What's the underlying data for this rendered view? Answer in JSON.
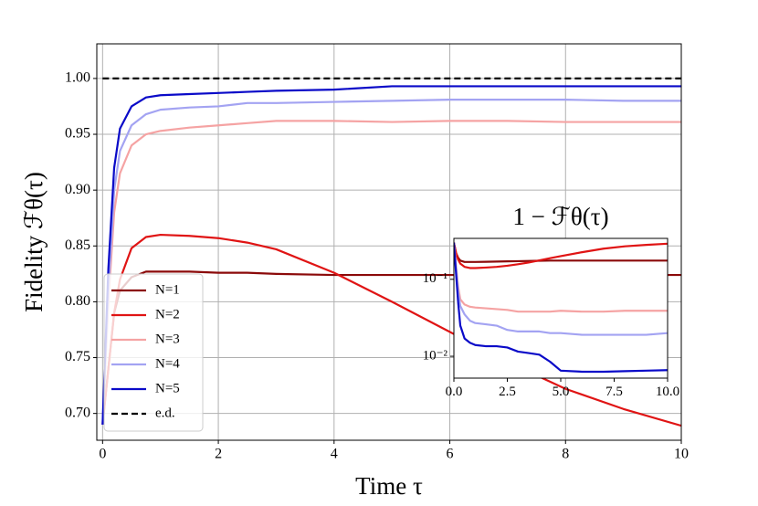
{
  "chart_data": [
    {
      "type": "line",
      "xlabel": "Time τ",
      "ylabel": "Fidelity ℱθ(τ)",
      "x": [
        0,
        0.1,
        0.2,
        0.3,
        0.5,
        0.75,
        1,
        1.5,
        2,
        2.5,
        3,
        4,
        5,
        6,
        7,
        8,
        9,
        10
      ],
      "series": [
        {
          "name": "N=1",
          "color": "#8b0a0a",
          "values": [
            0.69,
            0.74,
            0.79,
            0.81,
            0.822,
            0.827,
            0.827,
            0.827,
            0.826,
            0.826,
            0.825,
            0.824,
            0.824,
            0.824,
            0.824,
            0.824,
            0.824,
            0.824
          ]
        },
        {
          "name": "N=2",
          "color": "#e01414",
          "values": [
            0.69,
            0.74,
            0.79,
            0.82,
            0.848,
            0.858,
            0.86,
            0.859,
            0.857,
            0.853,
            0.847,
            0.826,
            0.8,
            0.773,
            0.746,
            0.722,
            0.704,
            0.689
          ]
        },
        {
          "name": "N=3",
          "color": "#f5a3a3",
          "values": [
            0.69,
            0.8,
            0.88,
            0.915,
            0.94,
            0.95,
            0.953,
            0.956,
            0.958,
            0.96,
            0.962,
            0.962,
            0.961,
            0.962,
            0.962,
            0.961,
            0.961,
            0.961
          ]
        },
        {
          "name": "N=4",
          "color": "#a3a3f2",
          "values": [
            0.69,
            0.81,
            0.9,
            0.935,
            0.958,
            0.968,
            0.972,
            0.974,
            0.975,
            0.978,
            0.978,
            0.979,
            0.98,
            0.981,
            0.981,
            0.981,
            0.98,
            0.98
          ]
        },
        {
          "name": "N=5",
          "color": "#0a0ac8",
          "values": [
            0.69,
            0.83,
            0.92,
            0.955,
            0.975,
            0.983,
            0.985,
            0.986,
            0.987,
            0.988,
            0.989,
            0.99,
            0.993,
            0.993,
            0.993,
            0.993,
            0.993,
            0.993
          ]
        },
        {
          "name": "e.d.",
          "color": "#000000",
          "linestyle": "dashed",
          "values": [
            1,
            1,
            1,
            1,
            1,
            1,
            1,
            1,
            1,
            1,
            1,
            1,
            1,
            1,
            1,
            1,
            1,
            1
          ]
        }
      ],
      "xlim": [
        -0.1,
        10
      ],
      "xticks": [
        0,
        2,
        4,
        6,
        8,
        10
      ],
      "ylim": [
        0.676,
        1.031
      ],
      "yticks": [
        {
          "value": 0.7,
          "label": "0.70"
        },
        0.75,
        {
          "value": 0.8,
          "label": "0.80"
        },
        0.85,
        {
          "value": 0.9,
          "label": "0.90"
        },
        0.95,
        {
          "value": 1,
          "label": "1.00"
        }
      ],
      "grid": true,
      "legend": "lower left"
    },
    {
      "type": "line",
      "title": "1 − ℱθ(τ)",
      "x": [
        0,
        0.1,
        0.2,
        0.3,
        0.5,
        0.75,
        1,
        1.5,
        2,
        2.5,
        3,
        3.5,
        4,
        4.5,
        5,
        6,
        7,
        8,
        9,
        10
      ],
      "series": [
        {
          "color": "#8b0a0a",
          "values": [
            0.3,
            0.22,
            0.19,
            0.175,
            0.168,
            0.168,
            0.168,
            0.169,
            0.17,
            0.171,
            0.172,
            0.173,
            0.174,
            0.175,
            0.175,
            0.175,
            0.175,
            0.175,
            0.175,
            0.175
          ]
        },
        {
          "color": "#e01414",
          "values": [
            0.3,
            0.22,
            0.18,
            0.16,
            0.145,
            0.14,
            0.14,
            0.142,
            0.145,
            0.15,
            0.157,
            0.165,
            0.176,
            0.188,
            0.2,
            0.225,
            0.25,
            0.268,
            0.28,
            0.29
          ]
        },
        {
          "color": "#f5a3a3",
          "values": [
            0.3,
            0.15,
            0.08,
            0.055,
            0.047,
            0.044,
            0.043,
            0.042,
            0.041,
            0.04,
            0.038,
            0.038,
            0.038,
            0.038,
            0.039,
            0.038,
            0.038,
            0.039,
            0.039,
            0.039
          ]
        },
        {
          "color": "#a3a3f2",
          "values": [
            0.3,
            0.14,
            0.07,
            0.045,
            0.035,
            0.029,
            0.027,
            0.026,
            0.025,
            0.022,
            0.021,
            0.021,
            0.021,
            0.02,
            0.02,
            0.019,
            0.019,
            0.019,
            0.019,
            0.02
          ]
        },
        {
          "color": "#0a0ac8",
          "values": [
            0.3,
            0.12,
            0.05,
            0.025,
            0.017,
            0.015,
            0.014,
            0.0135,
            0.0135,
            0.013,
            0.0115,
            0.011,
            0.0105,
            0.0085,
            0.0065,
            0.0063,
            0.0063,
            0.0064,
            0.0065,
            0.0066
          ]
        }
      ],
      "xlim": [
        0,
        10
      ],
      "xticks": [
        {
          "value": 0,
          "label": "0.0"
        },
        2.5,
        {
          "value": 5,
          "label": "5.0"
        },
        7.5,
        {
          "value": 10,
          "label": "10.0"
        }
      ],
      "ylim": [
        0.0052,
        0.34
      ],
      "yscale": "log",
      "yticks": [
        {
          "value": 0.01,
          "label": "10⁻²"
        },
        {
          "value": 0.1,
          "label": "10⁻¹"
        }
      ],
      "grid": false
    }
  ]
}
